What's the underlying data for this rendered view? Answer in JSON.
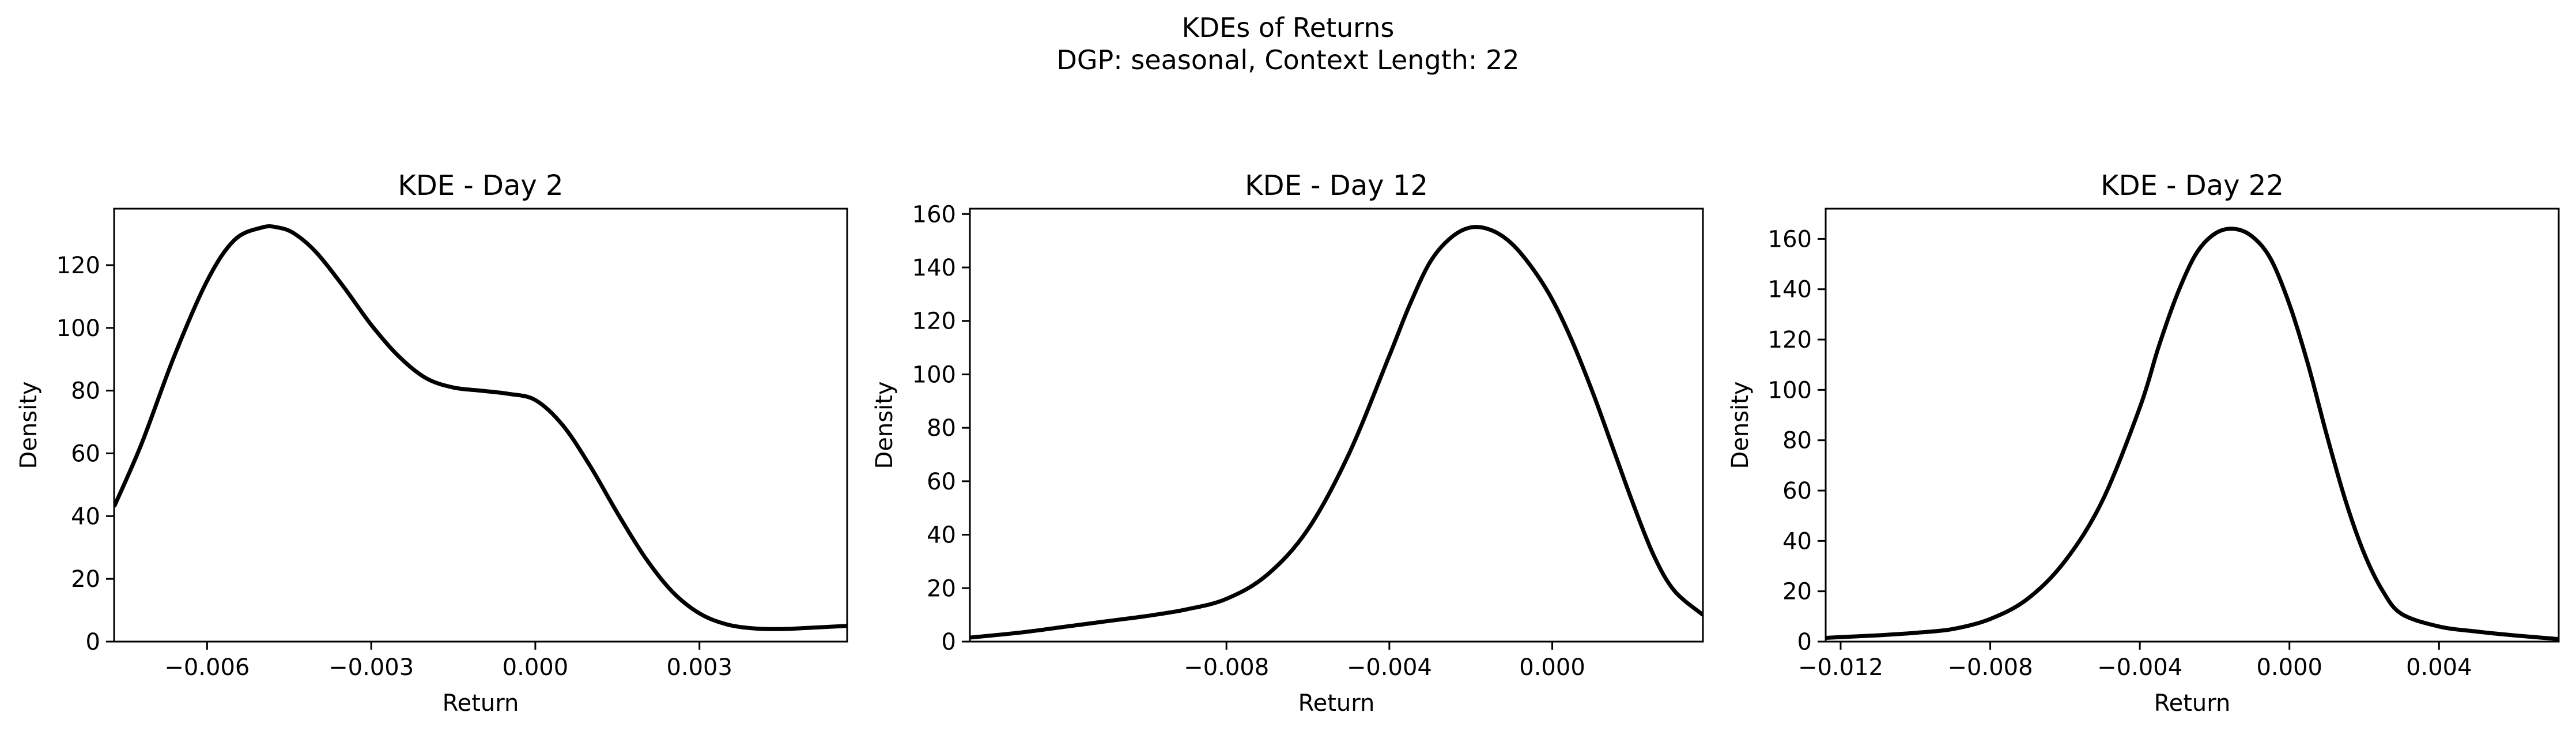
{
  "figure": {
    "title_line1": "KDEs of Returns",
    "title_line2": "DGP: seasonal, Context Length: 22"
  },
  "chart_data": [
    {
      "type": "line",
      "title": "KDE - Day 2",
      "xlabel": "Return",
      "ylabel": "Density",
      "xlim": [
        -0.0077,
        0.0057
      ],
      "ylim": [
        0,
        138
      ],
      "xticks": [
        -0.006,
        -0.003,
        0.0,
        0.003
      ],
      "xtick_labels": [
        "−0.006",
        "−0.003",
        "0.000",
        "0.003"
      ],
      "yticks": [
        0,
        20,
        40,
        60,
        80,
        100,
        120
      ],
      "ytick_labels": [
        "0",
        "20",
        "40",
        "60",
        "80",
        "100",
        "120"
      ],
      "grid": false,
      "series": [
        {
          "color": "#000000",
          "x": [
            -0.0077,
            -0.0072,
            -0.0066,
            -0.006,
            -0.0055,
            -0.005,
            -0.0047,
            -0.0044,
            -0.004,
            -0.0035,
            -0.003,
            -0.0025,
            -0.002,
            -0.0015,
            -0.001,
            -0.0005,
            0.0,
            0.0005,
            0.001,
            0.0015,
            0.002,
            0.0025,
            0.003,
            0.0035,
            0.004,
            0.0045,
            0.005,
            0.0057
          ],
          "y": [
            43,
            63,
            91,
            115,
            128,
            132,
            132,
            130,
            124,
            113,
            101,
            91,
            84,
            81,
            80,
            79,
            77,
            69,
            56,
            41,
            27,
            16,
            9,
            5.5,
            4.2,
            4.0,
            4.4,
            5.0
          ]
        }
      ]
    },
    {
      "type": "line",
      "title": "KDE - Day 12",
      "xlabel": "Return",
      "ylabel": "Density",
      "xlim": [
        -0.0143,
        0.0037
      ],
      "ylim": [
        0,
        162
      ],
      "xticks": [
        -0.008,
        -0.004,
        0.0
      ],
      "xtick_labels": [
        "−0.008",
        "−0.004",
        "0.000"
      ],
      "yticks": [
        0,
        20,
        40,
        60,
        80,
        100,
        120,
        140,
        160
      ],
      "ytick_labels": [
        "0",
        "20",
        "40",
        "60",
        "80",
        "100",
        "120",
        "140",
        "160"
      ],
      "grid": false,
      "series": [
        {
          "color": "#000000",
          "x": [
            -0.0143,
            -0.013,
            -0.012,
            -0.011,
            -0.01,
            -0.009,
            -0.008,
            -0.007,
            -0.006,
            -0.005,
            -0.004,
            -0.0035,
            -0.003,
            -0.0025,
            -0.002,
            -0.0015,
            -0.001,
            -0.0005,
            0.0,
            0.0005,
            0.001,
            0.0015,
            0.002,
            0.0025,
            0.003,
            0.0037
          ],
          "y": [
            1.5,
            3.5,
            5.5,
            7.5,
            9.5,
            12,
            16,
            25,
            42,
            70,
            107,
            126,
            142,
            151,
            155,
            154,
            149,
            140,
            128,
            112,
            93,
            72,
            51,
            32,
            19,
            10
          ]
        }
      ]
    },
    {
      "type": "line",
      "title": "KDE - Day 22",
      "xlabel": "Return",
      "ylabel": "Density",
      "xlim": [
        -0.0124,
        0.0072
      ],
      "ylim": [
        0,
        172
      ],
      "xticks": [
        -0.012,
        -0.008,
        -0.004,
        0.0,
        0.004
      ],
      "xtick_labels": [
        "−0.012",
        "−0.008",
        "−0.004",
        "0.000",
        "0.004"
      ],
      "yticks": [
        0,
        20,
        40,
        60,
        80,
        100,
        120,
        140,
        160
      ],
      "ytick_labels": [
        "0",
        "20",
        "40",
        "60",
        "80",
        "100",
        "120",
        "140",
        "160"
      ],
      "grid": false,
      "series": [
        {
          "color": "#000000",
          "x": [
            -0.0124,
            -0.011,
            -0.01,
            -0.009,
            -0.008,
            -0.007,
            -0.006,
            -0.005,
            -0.004,
            -0.0035,
            -0.003,
            -0.0025,
            -0.002,
            -0.0015,
            -0.001,
            -0.0005,
            0.0,
            0.0005,
            0.001,
            0.0015,
            0.002,
            0.0025,
            0.003,
            0.004,
            0.005,
            0.006,
            0.0072
          ],
          "y": [
            1.5,
            2.5,
            3.5,
            5,
            9,
            17,
            32,
            56,
            93,
            117,
            138,
            154,
            162,
            164,
            161,
            152,
            134,
            110,
            82,
            56,
            35,
            20,
            11,
            6,
            4,
            2.5,
            1
          ]
        }
      ]
    }
  ]
}
